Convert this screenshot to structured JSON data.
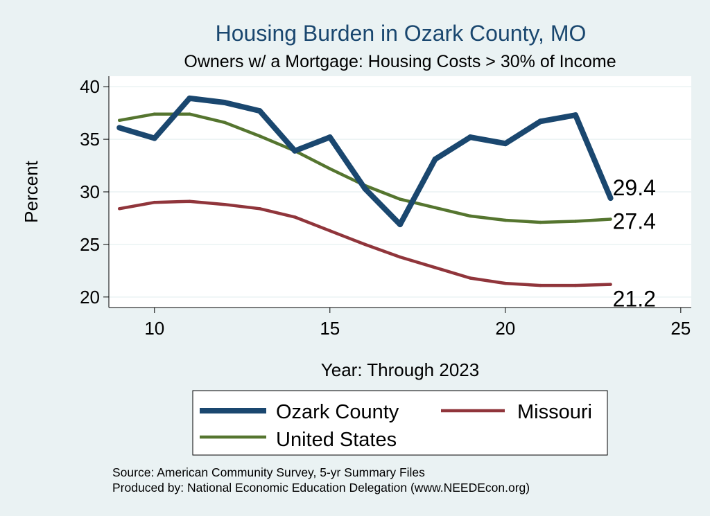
{
  "chart_data": {
    "type": "line",
    "title": "Housing Burden in Ozark County, MO",
    "subtitle": "Owners w/ a Mortgage: Housing Costs > 30% of Income",
    "xlabel": "Year: Through 2023",
    "ylabel": "Percent",
    "xlim": [
      8.7,
      25.3
    ],
    "ylim": [
      19.0,
      41.0
    ],
    "xticks": [
      10,
      15,
      20,
      25
    ],
    "yticks": [
      20,
      25,
      30,
      35,
      40
    ],
    "grid": true,
    "legend_position": "bottom",
    "x": [
      9,
      10,
      11,
      12,
      13,
      14,
      15,
      16,
      17,
      18,
      19,
      20,
      21,
      22,
      23
    ],
    "series": [
      {
        "name": "Ozark County",
        "color": "#1a476f",
        "values": [
          36.1,
          35.1,
          38.9,
          38.5,
          37.7,
          33.9,
          35.2,
          30.3,
          26.9,
          33.1,
          35.2,
          34.6,
          36.7,
          37.3,
          29.4
        ],
        "end_label": "29.4"
      },
      {
        "name": "Missouri",
        "color": "#90353b",
        "values": [
          28.4,
          29.0,
          29.1,
          28.8,
          28.4,
          27.6,
          26.3,
          25.0,
          23.8,
          22.8,
          21.8,
          21.3,
          21.1,
          21.1,
          21.2
        ],
        "end_label": "21.2"
      },
      {
        "name": "United States",
        "color": "#55752f",
        "values": [
          36.8,
          37.4,
          37.4,
          36.6,
          35.3,
          33.9,
          32.2,
          30.6,
          29.3,
          28.5,
          27.7,
          27.3,
          27.1,
          27.2,
          27.4
        ],
        "end_label": "27.4"
      }
    ]
  },
  "legend": {
    "items": [
      "Ozark County",
      "Missouri",
      "United States"
    ]
  },
  "source": {
    "line1": "Source: American Community Survey, 5-yr Summary Files",
    "line2": "Produced by: National Economic Education Delegation (www.NEEDEcon.org)"
  }
}
